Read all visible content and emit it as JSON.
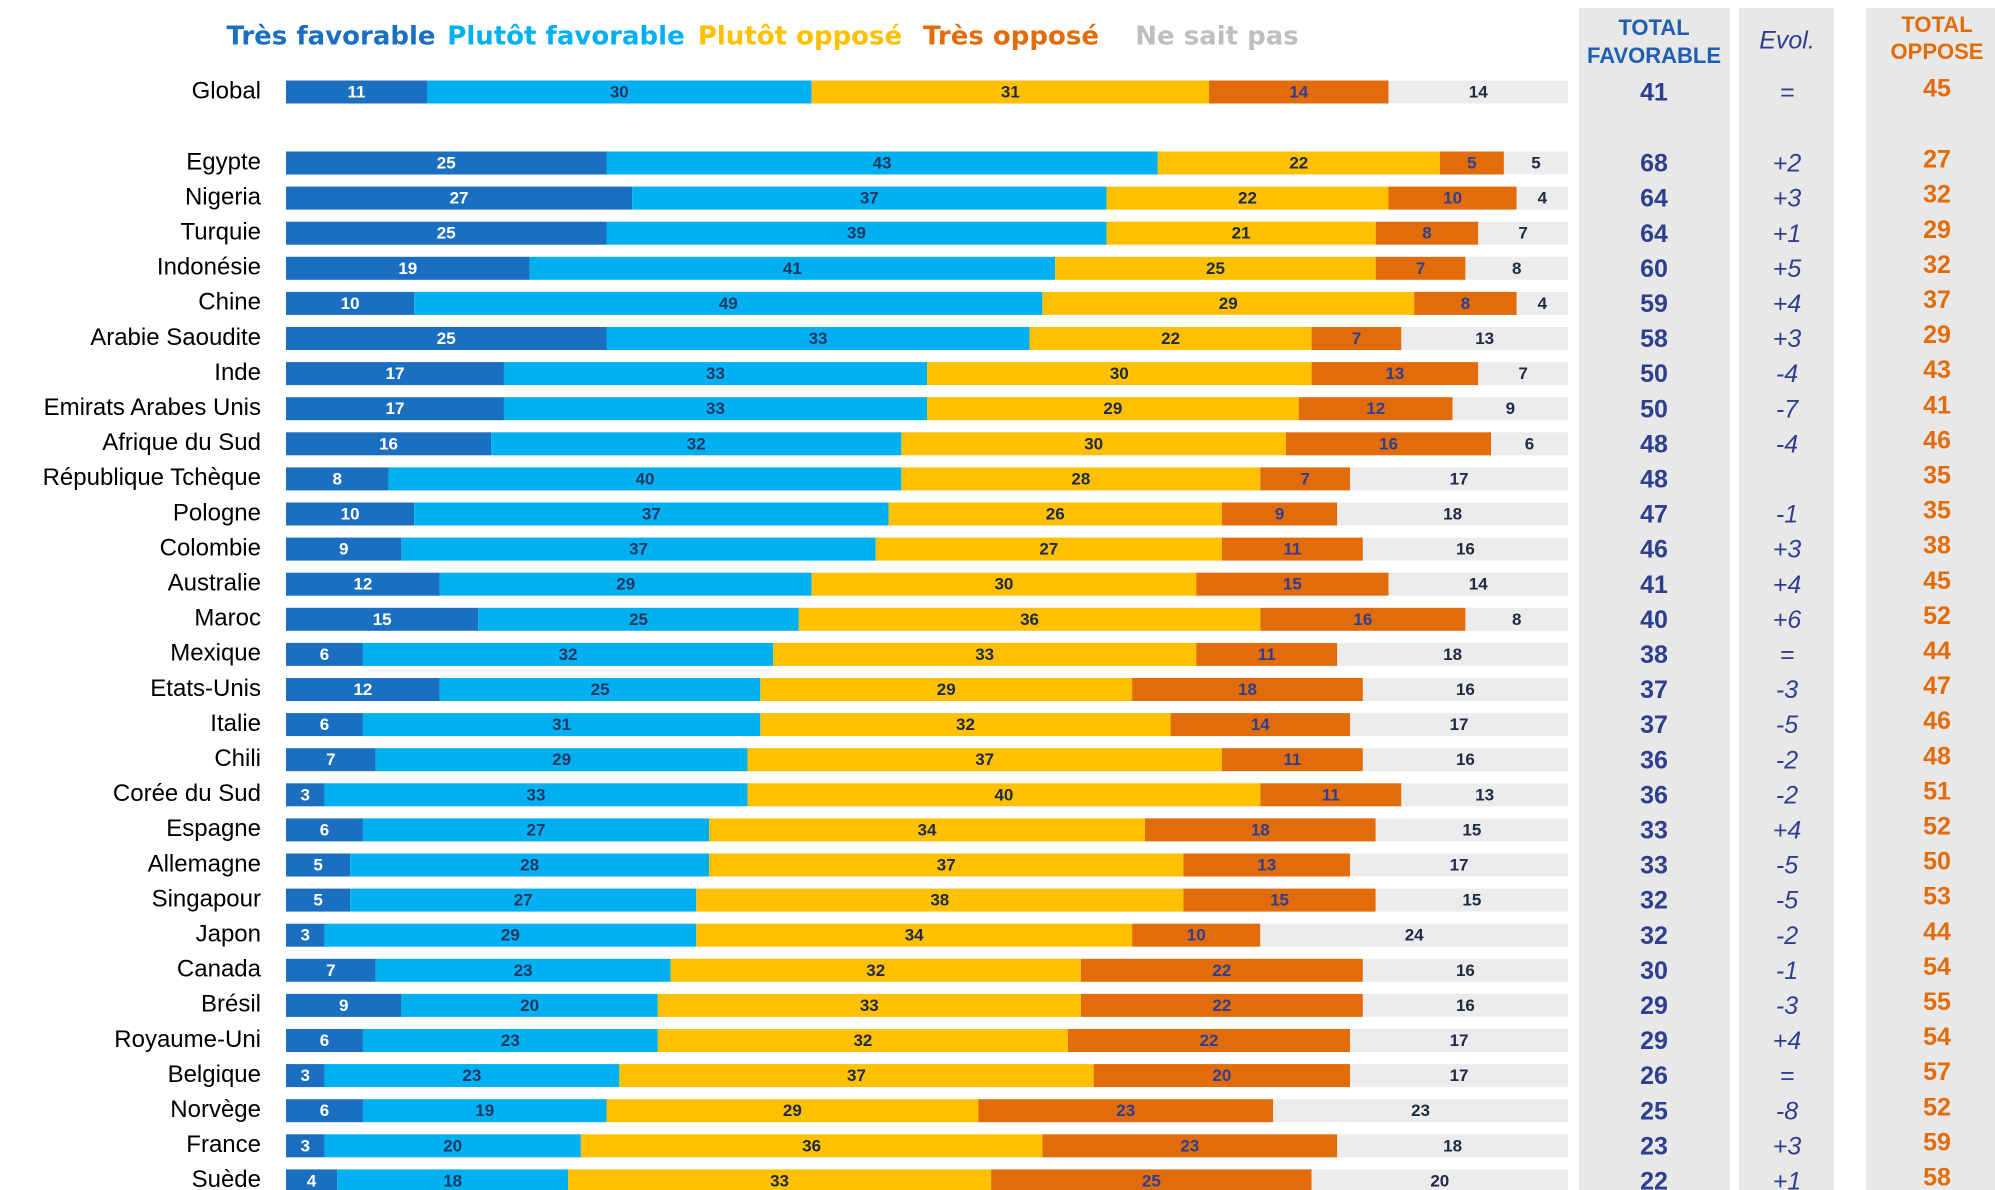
{
  "chart_data": {
    "type": "stacked_barh",
    "categories": [
      "Global",
      "Egypte",
      "Nigeria",
      "Turquie",
      "Indonésie",
      "Chine",
      "Arabie Saoudite",
      "Inde",
      "Emirats Arabes Unis",
      "Afrique du Sud",
      "République Tchèque",
      "Pologne",
      "Colombie",
      "Australie",
      "Maroc",
      "Mexique",
      "Etats-Unis",
      "Italie",
      "Chili",
      "Corée du Sud",
      "Espagne",
      "Allemagne",
      "Singapour",
      "Japon",
      "Canada",
      "Brésil",
      "Royaume-Uni",
      "Belgique",
      "Norvège",
      "France",
      "Suède"
    ],
    "series": [
      {
        "name": "Très favorable",
        "color": "#1a6fc0",
        "legend_color": "#1a6fc0",
        "values": [
          11,
          25,
          27,
          25,
          19,
          10,
          25,
          17,
          17,
          16,
          8,
          10,
          9,
          12,
          15,
          6,
          12,
          6,
          7,
          3,
          6,
          5,
          5,
          3,
          7,
          9,
          6,
          3,
          6,
          3,
          4
        ]
      },
      {
        "name": "Plutôt favorable",
        "color": "#00b0f0",
        "legend_color": "#00b0f0",
        "values": [
          30,
          43,
          37,
          39,
          41,
          49,
          33,
          33,
          33,
          32,
          40,
          37,
          37,
          29,
          25,
          32,
          25,
          31,
          29,
          33,
          27,
          28,
          27,
          29,
          23,
          20,
          23,
          23,
          19,
          20,
          18
        ]
      },
      {
        "name": "Plutôt opposé",
        "color": "#ffc000",
        "legend_color": "#ffc000",
        "values": [
          31,
          22,
          22,
          21,
          25,
          29,
          22,
          30,
          29,
          30,
          28,
          26,
          27,
          30,
          36,
          33,
          29,
          32,
          37,
          40,
          34,
          37,
          38,
          34,
          32,
          33,
          32,
          37,
          29,
          36,
          33
        ]
      },
      {
        "name": "Très opposé",
        "color": "#e36c0a",
        "legend_color": "#e36c0a",
        "values": [
          14,
          5,
          10,
          8,
          7,
          8,
          7,
          13,
          12,
          16,
          7,
          9,
          11,
          15,
          16,
          11,
          18,
          14,
          11,
          11,
          18,
          13,
          15,
          10,
          22,
          22,
          22,
          20,
          23,
          23,
          25
        ]
      },
      {
        "name": "Ne sait pas",
        "color": "#ececec",
        "legend_color": "#bfbfbf",
        "values": [
          14,
          5,
          4,
          7,
          8,
          4,
          13,
          7,
          9,
          6,
          17,
          18,
          16,
          14,
          8,
          18,
          16,
          17,
          16,
          13,
          15,
          17,
          15,
          24,
          16,
          16,
          17,
          17,
          23,
          18,
          20
        ]
      }
    ],
    "xlim": [
      0,
      100
    ],
    "total_favorable": {
      "header": [
        "TOTAL",
        "FAVORABLE"
      ],
      "values": [
        41,
        68,
        64,
        64,
        60,
        59,
        58,
        50,
        50,
        48,
        48,
        47,
        46,
        41,
        40,
        38,
        37,
        37,
        36,
        36,
        33,
        33,
        32,
        32,
        30,
        29,
        29,
        26,
        25,
        23,
        22
      ]
    },
    "evol": {
      "header": "Evol.",
      "values": [
        "=",
        "+2",
        "+3",
        "+1",
        "+5",
        "+4",
        "+3",
        "-4",
        "-7",
        "-4",
        null,
        "-1",
        "+3",
        "+4",
        "+6",
        "=",
        "-3",
        "-5",
        "-2",
        "-2",
        "+4",
        "-5",
        "-5",
        "-2",
        "-1",
        "-3",
        "+4",
        "=",
        "-8",
        "+3",
        "+1"
      ]
    },
    "total_oppose": {
      "header": [
        "TOTAL",
        "OPPOSE"
      ],
      "values": [
        45,
        27,
        32,
        29,
        32,
        37,
        29,
        43,
        41,
        46,
        35,
        35,
        38,
        45,
        52,
        44,
        47,
        46,
        48,
        51,
        52,
        50,
        53,
        44,
        54,
        55,
        54,
        57,
        52,
        59,
        58
      ]
    }
  }
}
